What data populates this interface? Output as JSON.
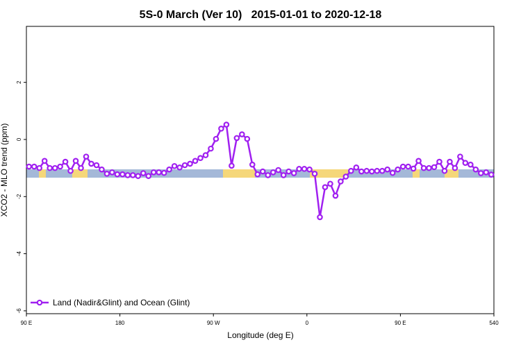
{
  "chart_data": {
    "type": "line",
    "title": "5S-0 March (Ver 10)   2015-01-01 to 2020-12-18",
    "xlabel": "Longitude (deg E)",
    "ylabel": "XCO2 - MLO trend (ppm)",
    "xlim": [
      90,
      540
    ],
    "ylim": [
      -6.1,
      3.96
    ],
    "xticks": [
      {
        "value": 90,
        "label": "90 E"
      },
      180,
      {
        "value": 270,
        "label": "90 W"
      },
      {
        "value": 360,
        "label": "0"
      },
      {
        "value": 450,
        "label": "90 E"
      },
      540
    ],
    "yticks": [
      2,
      0,
      -2,
      -4,
      -6
    ],
    "legend": "bottom-left",
    "x": [
      92.5,
      97.5,
      102.5,
      107.5,
      112.5,
      117.5,
      122.5,
      127.5,
      132.5,
      137.5,
      142.5,
      147.5,
      152.5,
      157.5,
      162.5,
      167.5,
      172.5,
      177.5,
      182.5,
      187.5,
      192.5,
      197.5,
      202.5,
      207.5,
      212.5,
      217.5,
      222.5,
      227.5,
      232.5,
      237.5,
      242.5,
      247.5,
      252.5,
      257.5,
      262.5,
      267.5,
      272.5,
      277.5,
      282.5,
      287.5,
      292.5,
      297.5,
      302.5,
      307.5,
      312.5,
      317.5,
      322.5,
      327.5,
      332.5,
      337.5,
      342.5,
      347.5,
      352.5,
      357.5,
      362.5,
      367.5,
      372.5,
      377.5,
      382.5,
      387.5,
      392.5,
      397.5,
      402.5,
      407.5,
      412.5,
      417.5,
      422.5,
      427.5,
      432.5,
      437.5,
      442.5,
      447.5,
      452.5,
      457.5,
      462.5,
      467.5,
      472.5,
      477.5,
      482.5,
      487.5,
      492.5,
      497.5,
      502.5,
      507.5,
      512.5,
      517.5,
      522.5,
      527.5,
      532.5,
      537.5
    ],
    "series": [
      {
        "name": "Land (Nadir&Glint) and Ocean (Glint)",
        "color": "#a020f0",
        "values": [
          -0.95,
          -0.95,
          -1.0,
          -0.75,
          -1.0,
          -1.0,
          -0.95,
          -0.78,
          -1.1,
          -0.75,
          -1.0,
          -0.6,
          -0.85,
          -0.9,
          -1.05,
          -1.2,
          -1.15,
          -1.22,
          -1.22,
          -1.25,
          -1.25,
          -1.28,
          -1.18,
          -1.28,
          -1.15,
          -1.15,
          -1.17,
          -1.05,
          -0.93,
          -0.98,
          -0.9,
          -0.85,
          -0.75,
          -0.65,
          -0.55,
          -0.32,
          0.02,
          0.38,
          0.52,
          -0.92,
          0.05,
          0.18,
          0.02,
          -0.88,
          -1.22,
          -1.12,
          -1.25,
          -1.15,
          -1.07,
          -1.25,
          -1.12,
          -1.18,
          -1.03,
          -1.03,
          -1.05,
          -1.2,
          -2.72,
          -1.67,
          -1.55,
          -1.97,
          -1.47,
          -1.3,
          -1.1,
          -0.98,
          -1.12,
          -1.1,
          -1.12,
          -1.1,
          -1.1,
          -1.05,
          -1.17,
          -1.05,
          -0.95,
          -0.95,
          -1.02,
          -0.75,
          -1.0,
          -1.0,
          -0.97,
          -0.78,
          -1.1,
          -0.78,
          -1.0,
          -0.6,
          -0.82,
          -0.88,
          -1.05,
          -1.18,
          -1.15,
          -1.23
        ]
      }
    ]
  }
}
